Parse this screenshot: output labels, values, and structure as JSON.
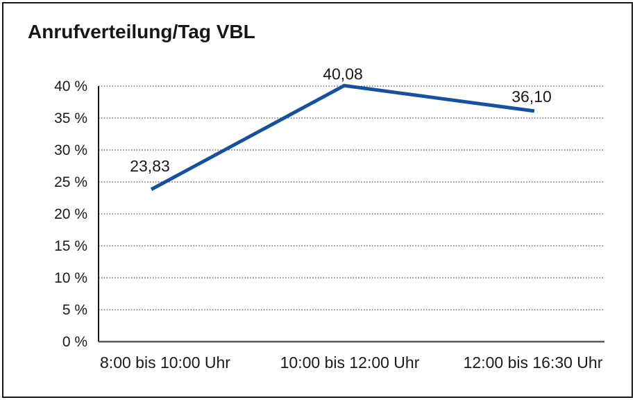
{
  "title": "Anrufverteilung/Tag VBL",
  "colors": {
    "line": "#15519e",
    "text": "#1a1a1a",
    "frame": "#161616"
  },
  "chart_data": {
    "type": "line",
    "title": "Anrufverteilung/Tag VBL",
    "categories": [
      "8:00 bis 10:00 Uhr",
      "10:00 bis 12:00 Uhr",
      "12:00 bis 16:30 Uhr"
    ],
    "values": [
      23.83,
      40.08,
      36.1
    ],
    "point_labels": [
      "23,83",
      "40,08",
      "36,10"
    ],
    "y_ticks": [
      0,
      5,
      10,
      15,
      20,
      25,
      30,
      35,
      40
    ],
    "y_tick_labels": [
      "0 %",
      "5 %",
      "10 %",
      "15 %",
      "20 %",
      "25 %",
      "30 %",
      "35 %",
      "40 %"
    ],
    "ylim": [
      0,
      40
    ],
    "xlabel": "",
    "ylabel": "",
    "grid": "horizontal-dotted",
    "legend": "none",
    "line_color": "#15519e"
  }
}
